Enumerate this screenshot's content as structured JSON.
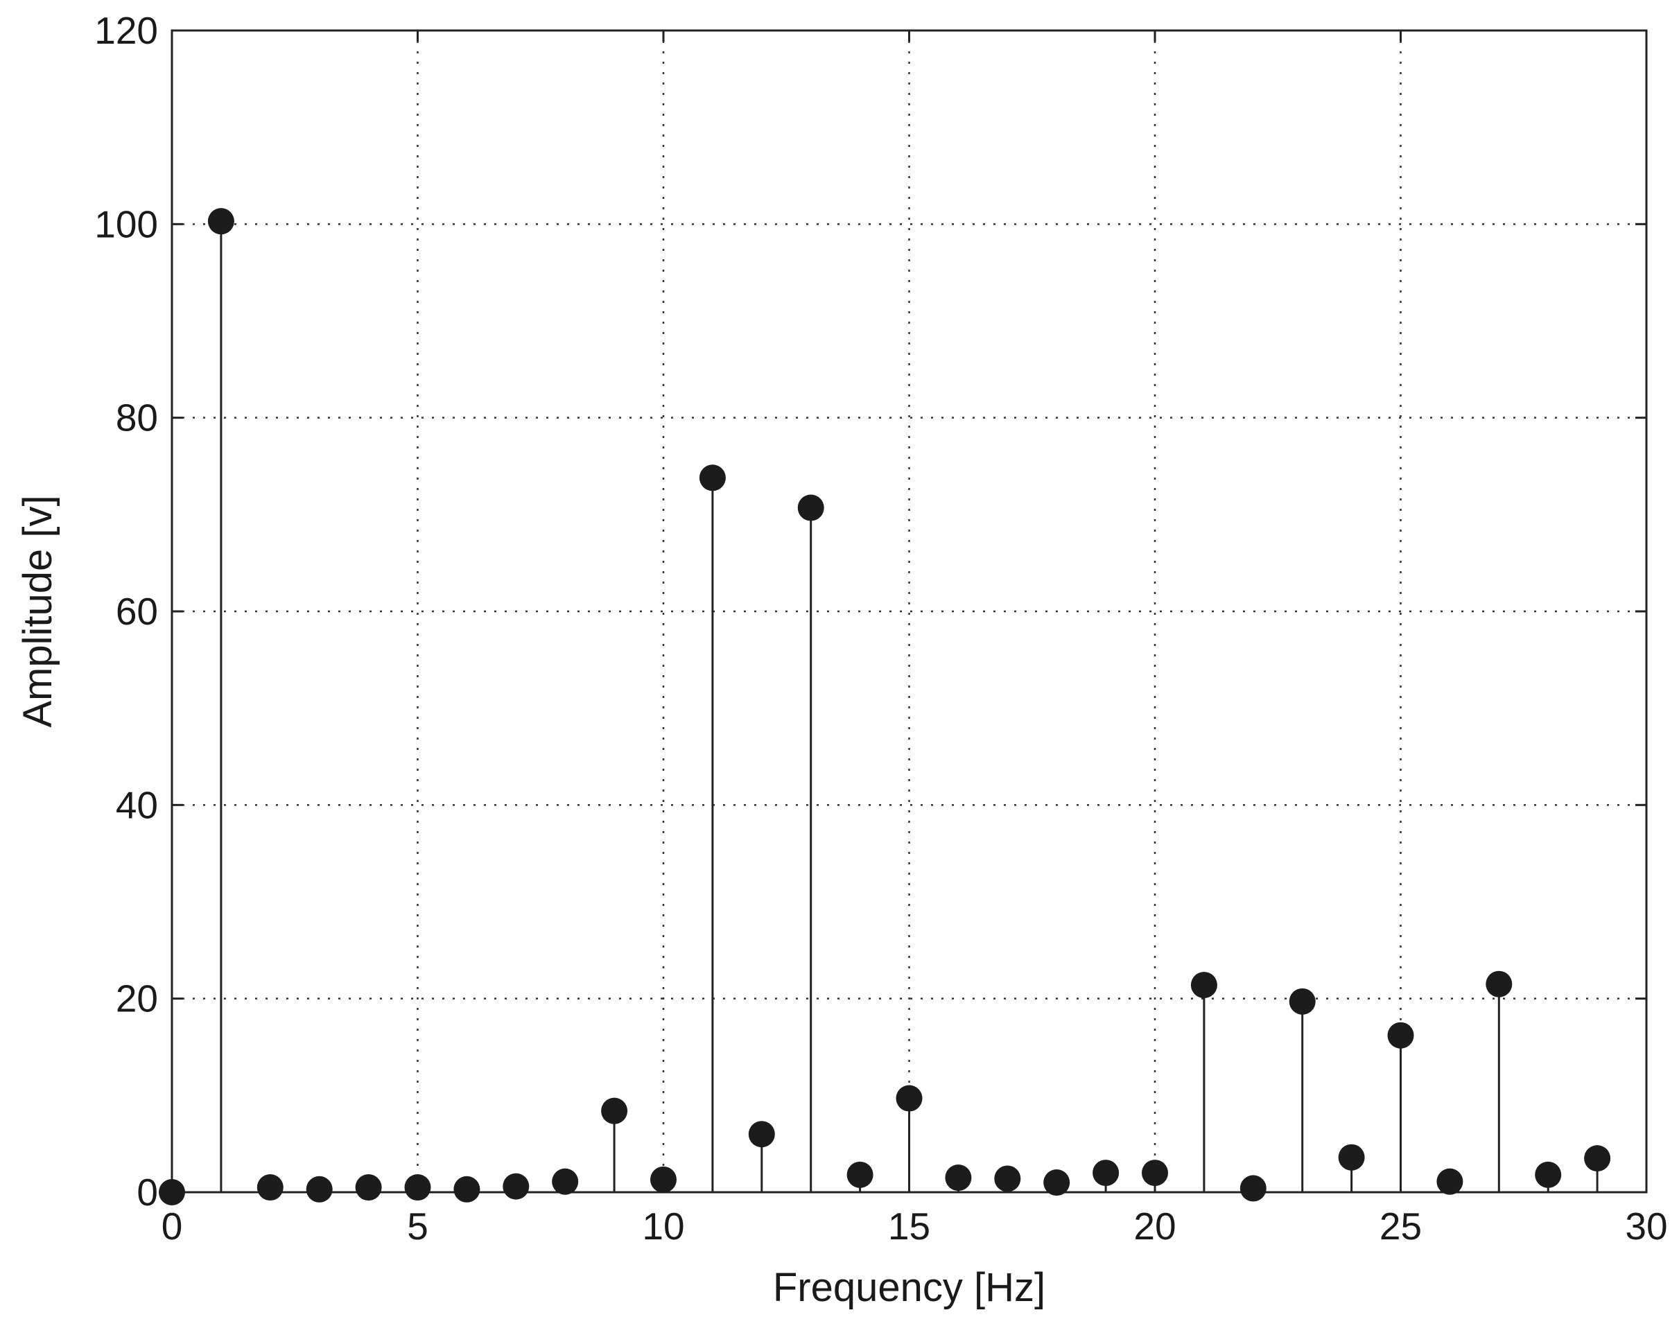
{
  "chart_data": {
    "type": "stem",
    "title": "",
    "xlabel": "Frequency [Hz]",
    "ylabel": "Amplitude [v]",
    "xlim": [
      0,
      30
    ],
    "ylim": [
      0,
      120
    ],
    "xticks": [
      0,
      5,
      10,
      15,
      20,
      25,
      30
    ],
    "yticks": [
      0,
      20,
      40,
      60,
      80,
      100,
      120
    ],
    "grid": true,
    "colors": {
      "marker": "#1c1c1c",
      "stem": "#222222",
      "grid": "#333333"
    },
    "x": [
      0,
      1,
      2,
      3,
      4,
      5,
      6,
      7,
      8,
      9,
      10,
      11,
      12,
      13,
      14,
      15,
      16,
      17,
      18,
      19,
      20,
      21,
      22,
      23,
      24,
      25,
      26,
      27,
      28,
      29
    ],
    "values": [
      0,
      100.3,
      0.5,
      0.3,
      0.5,
      0.5,
      0.3,
      0.6,
      1.1,
      8.4,
      1.3,
      73.8,
      6.0,
      70.7,
      1.8,
      9.7,
      1.5,
      1.4,
      1.0,
      2.0,
      2.0,
      21.4,
      0.4,
      19.7,
      3.6,
      16.2,
      1.1,
      21.5,
      1.8,
      3.5
    ]
  }
}
